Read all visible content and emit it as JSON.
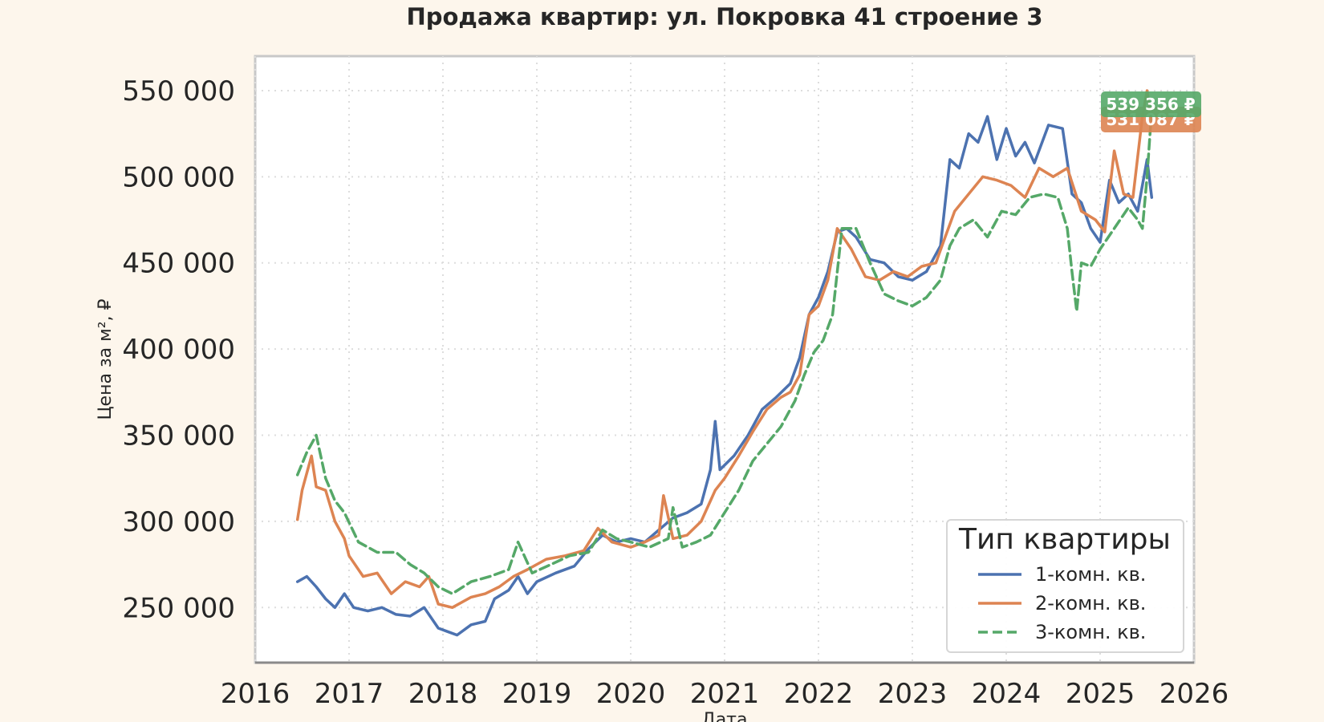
{
  "chart_data": {
    "type": "line",
    "title": "Продажа квартир: ул. Покровка 41 строение 3",
    "xlabel": "Дата",
    "ylabel": "Цена за м², ₽",
    "xlim": [
      2016,
      2026
    ],
    "ylim": [
      218000,
      570000
    ],
    "xticks": [
      "2016",
      "2017",
      "2018",
      "2019",
      "2020",
      "2021",
      "2022",
      "2023",
      "2024",
      "2025",
      "2026"
    ],
    "yticks": [
      "250 000",
      "300 000",
      "350 000",
      "400 000",
      "450 000",
      "500 000",
      "550 000"
    ],
    "grid": true,
    "legend": {
      "title": "Тип квартиры",
      "position": "lower-right",
      "entries": [
        "1-комн. кв.",
        "2-комн. кв.",
        "3-комн. кв."
      ]
    },
    "annotations": [
      {
        "text": "539 356 ₽",
        "value": 539356,
        "color": "#55a868"
      },
      {
        "text": "531 087 ₽",
        "value": 531087,
        "color": "#dd8452"
      }
    ],
    "series": [
      {
        "name": "1-комн. кв.",
        "color": "#4c72b0",
        "style": "solid",
        "x": [
          2016.45,
          2016.55,
          2016.65,
          2016.75,
          2016.85,
          2016.95,
          2017.05,
          2017.2,
          2017.35,
          2017.5,
          2017.65,
          2017.8,
          2017.95,
          2018.05,
          2018.15,
          2018.3,
          2018.45,
          2018.55,
          2018.7,
          2018.8,
          2018.9,
          2019.0,
          2019.2,
          2019.4,
          2019.55,
          2019.7,
          2019.85,
          2020.0,
          2020.15,
          2020.3,
          2020.45,
          2020.6,
          2020.75,
          2020.85,
          2020.9,
          2020.95,
          2021.1,
          2021.25,
          2021.4,
          2021.55,
          2021.7,
          2021.8,
          2021.9,
          2022.0,
          2022.1,
          2022.2,
          2022.3,
          2022.4,
          2022.55,
          2022.7,
          2022.85,
          2023.0,
          2023.15,
          2023.3,
          2023.4,
          2023.5,
          2023.6,
          2023.7,
          2023.8,
          2023.9,
          2024.0,
          2024.1,
          2024.2,
          2024.3,
          2024.45,
          2024.6,
          2024.7,
          2024.8,
          2024.9,
          2025.0,
          2025.1,
          2025.2,
          2025.3,
          2025.4,
          2025.5,
          2025.55
        ],
        "y": [
          265000,
          268000,
          262000,
          255000,
          250000,
          258000,
          250000,
          248000,
          250000,
          246000,
          245000,
          250000,
          238000,
          236000,
          234000,
          240000,
          242000,
          255000,
          260000,
          268000,
          258000,
          265000,
          270000,
          274000,
          284000,
          292000,
          288000,
          290000,
          288000,
          295000,
          302000,
          305000,
          310000,
          330000,
          358000,
          330000,
          338000,
          350000,
          365000,
          372000,
          380000,
          395000,
          420000,
          430000,
          445000,
          468000,
          470000,
          465000,
          452000,
          450000,
          442000,
          440000,
          445000,
          460000,
          510000,
          505000,
          525000,
          520000,
          535000,
          510000,
          528000,
          512000,
          520000,
          508000,
          530000,
          528000,
          490000,
          485000,
          470000,
          462000,
          498000,
          485000,
          490000,
          480000,
          510000,
          488000
        ]
      },
      {
        "name": "2-комн. кв.",
        "color": "#dd8452",
        "style": "solid",
        "x": [
          2016.45,
          2016.5,
          2016.6,
          2016.65,
          2016.75,
          2016.85,
          2016.95,
          2017.0,
          2017.15,
          2017.3,
          2017.45,
          2017.6,
          2017.75,
          2017.85,
          2017.95,
          2018.1,
          2018.3,
          2018.45,
          2018.6,
          2018.75,
          2018.9,
          2019.1,
          2019.3,
          2019.5,
          2019.65,
          2019.8,
          2020.0,
          2020.15,
          2020.3,
          2020.35,
          2020.45,
          2020.6,
          2020.75,
          2020.9,
          2021.0,
          2021.15,
          2021.3,
          2021.45,
          2021.6,
          2021.7,
          2021.8,
          2021.9,
          2022.0,
          2022.1,
          2022.2,
          2022.35,
          2022.5,
          2022.65,
          2022.8,
          2022.95,
          2023.1,
          2023.25,
          2023.35,
          2023.45,
          2023.6,
          2023.75,
          2023.9,
          2024.05,
          2024.2,
          2024.35,
          2024.5,
          2024.65,
          2024.8,
          2024.95,
          2025.05,
          2025.15,
          2025.25,
          2025.35,
          2025.45,
          2025.5,
          2025.55
        ],
        "y": [
          301000,
          318000,
          338000,
          320000,
          318000,
          300000,
          290000,
          280000,
          268000,
          270000,
          258000,
          265000,
          262000,
          268000,
          252000,
          250000,
          256000,
          258000,
          262000,
          268000,
          272000,
          278000,
          280000,
          283000,
          296000,
          288000,
          285000,
          288000,
          292000,
          315000,
          290000,
          292000,
          300000,
          318000,
          325000,
          338000,
          352000,
          365000,
          372000,
          375000,
          385000,
          420000,
          425000,
          440000,
          470000,
          458000,
          442000,
          440000,
          445000,
          442000,
          448000,
          450000,
          465000,
          480000,
          490000,
          500000,
          498000,
          495000,
          488000,
          505000,
          500000,
          505000,
          480000,
          475000,
          468000,
          515000,
          490000,
          488000,
          535000,
          550000,
          531087
        ]
      },
      {
        "name": "3-комн. кв.",
        "color": "#55a868",
        "style": "dashed",
        "x": [
          2016.45,
          2016.55,
          2016.65,
          2016.75,
          2016.85,
          2016.95,
          2017.1,
          2017.3,
          2017.5,
          2017.65,
          2017.8,
          2017.95,
          2018.1,
          2018.3,
          2018.5,
          2018.7,
          2018.8,
          2018.95,
          2019.15,
          2019.35,
          2019.55,
          2019.7,
          2019.85,
          2020.0,
          2020.2,
          2020.4,
          2020.45,
          2020.55,
          2020.7,
          2020.85,
          2021.0,
          2021.15,
          2021.3,
          2021.45,
          2021.6,
          2021.75,
          2021.85,
          2021.95,
          2022.05,
          2022.15,
          2022.25,
          2022.4,
          2022.55,
          2022.7,
          2022.85,
          2023.0,
          2023.15,
          2023.3,
          2023.4,
          2023.5,
          2023.65,
          2023.8,
          2023.95,
          2024.1,
          2024.25,
          2024.4,
          2024.55,
          2024.65,
          2024.7,
          2024.75,
          2024.8,
          2024.9,
          2025.0,
          2025.15,
          2025.3,
          2025.4,
          2025.45,
          2025.5,
          2025.55
        ],
        "y": [
          327000,
          340000,
          350000,
          325000,
          312000,
          305000,
          288000,
          282000,
          282000,
          275000,
          270000,
          262000,
          258000,
          265000,
          268000,
          272000,
          288000,
          270000,
          275000,
          280000,
          282000,
          295000,
          290000,
          288000,
          285000,
          290000,
          308000,
          285000,
          288000,
          292000,
          305000,
          318000,
          335000,
          345000,
          355000,
          370000,
          385000,
          398000,
          405000,
          420000,
          470000,
          470000,
          450000,
          432000,
          428000,
          425000,
          430000,
          440000,
          460000,
          470000,
          475000,
          465000,
          480000,
          478000,
          488000,
          490000,
          488000,
          470000,
          445000,
          422000,
          450000,
          448000,
          458000,
          470000,
          482000,
          475000,
          470000,
          500000,
          539356
        ]
      }
    ]
  }
}
